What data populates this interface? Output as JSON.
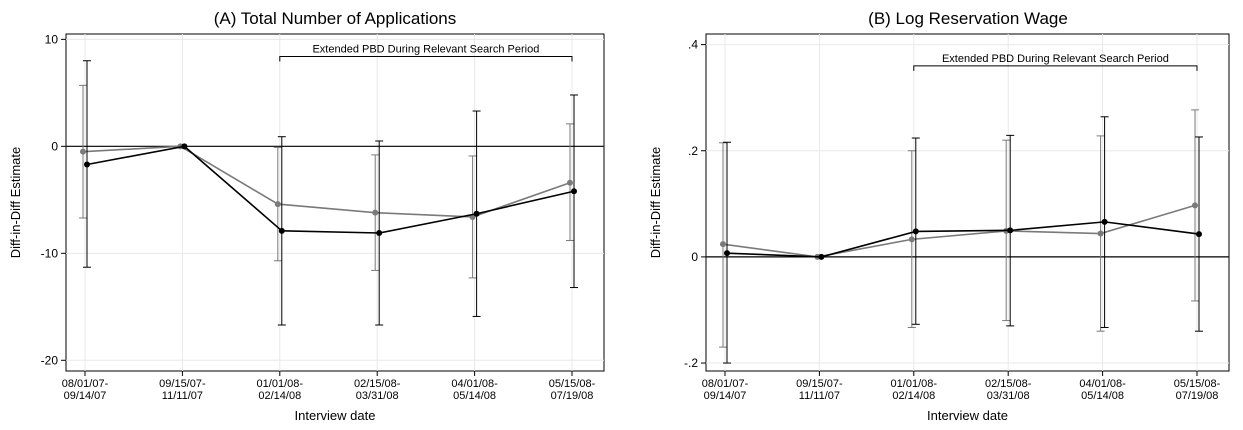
{
  "chart_data": [
    {
      "type": "line",
      "title": "(A) Total Number of Applications",
      "xlabel": "Interview date",
      "ylabel": "Diff-in-Diff Estimate",
      "categories": [
        [
          "08/01/07-",
          "09/14/07"
        ],
        [
          "09/15/07-",
          "11/11/07"
        ],
        [
          "01/01/08-",
          "02/14/08"
        ],
        [
          "02/15/08-",
          "03/31/08"
        ],
        [
          "04/01/08-",
          "05/14/08"
        ],
        [
          "05/15/08-",
          "07/19/08"
        ]
      ],
      "ylim": [
        -21,
        10.5
      ],
      "yticks": [
        10,
        0,
        -10,
        -20
      ],
      "ytick_labels": [
        "10",
        "0",
        "-10",
        "-20"
      ],
      "grid": true,
      "reference_line": 0,
      "annotation": {
        "text": "Extended PBD During Relevant Search Period",
        "from_index": 2,
        "to_index": 5,
        "y": 8.4
      },
      "series": [
        {
          "color": "#7a7a7a",
          "values": [
            -0.5,
            0,
            -5.4,
            -6.2,
            -6.6,
            -3.4
          ],
          "ci_low": [
            -6.7,
            0,
            -10.7,
            -11.6,
            -12.3,
            -8.8
          ],
          "ci_high": [
            5.7,
            0,
            -0.1,
            -0.8,
            -0.9,
            2.1
          ]
        },
        {
          "color": "#000000",
          "values": [
            -1.7,
            0,
            -7.9,
            -8.1,
            -6.3,
            -4.2
          ],
          "ci_low": [
            -11.3,
            0,
            -16.7,
            -16.7,
            -15.9,
            -13.2
          ],
          "ci_high": [
            8.0,
            0,
            0.9,
            0.5,
            3.3,
            4.8
          ]
        }
      ]
    },
    {
      "type": "line",
      "title": "(B) Log Reservation Wage",
      "xlabel": "Interview date",
      "ylabel": "Diff-in-Diff Estimate",
      "categories": [
        [
          "08/01/07-",
          "09/14/07"
        ],
        [
          "09/15/07-",
          "11/11/07"
        ],
        [
          "01/01/08-",
          "02/14/08"
        ],
        [
          "02/15/08-",
          "03/31/08"
        ],
        [
          "04/01/08-",
          "05/14/08"
        ],
        [
          "05/15/08-",
          "07/19/08"
        ]
      ],
      "ylim": [
        -0.215,
        0.42
      ],
      "yticks": [
        0.4,
        0.2,
        0,
        -0.2
      ],
      "ytick_labels": [
        ".4",
        ".2",
        "0",
        "-.2"
      ],
      "grid": true,
      "reference_line": 0,
      "annotation": {
        "text": "Extended PBD During Relevant Search Period",
        "from_index": 2,
        "to_index": 5,
        "y": 0.36
      },
      "series": [
        {
          "color": "#7a7a7a",
          "values": [
            0.024,
            0,
            0.033,
            0.049,
            0.044,
            0.097
          ],
          "ci_low": [
            -0.17,
            0,
            -0.133,
            -0.12,
            -0.14,
            -0.083
          ],
          "ci_high": [
            0.215,
            0,
            0.2,
            0.22,
            0.228,
            0.277
          ]
        },
        {
          "color": "#000000",
          "values": [
            0.007,
            0,
            0.048,
            0.05,
            0.066,
            0.043
          ],
          "ci_low": [
            -0.2,
            0,
            -0.127,
            -0.13,
            -0.133,
            -0.14
          ],
          "ci_high": [
            0.216,
            0,
            0.224,
            0.229,
            0.264,
            0.226
          ]
        }
      ]
    }
  ]
}
